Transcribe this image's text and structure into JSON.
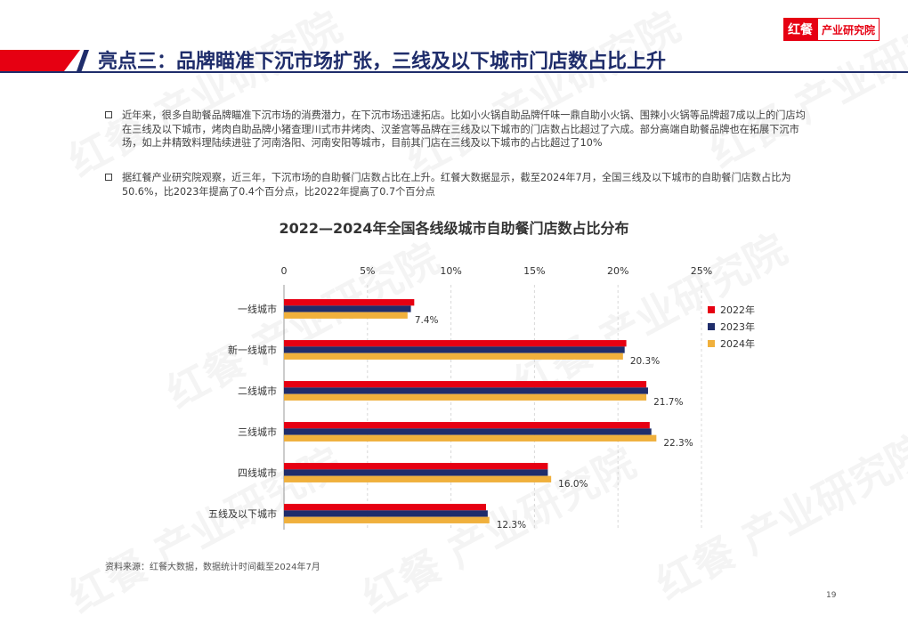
{
  "logo": {
    "mark": "红餐",
    "text": "产业研究院"
  },
  "title": "亮点三：品牌瞄准下沉市场扩张，三线及以下城市门店数占比上升",
  "bullets": [
    "近年来，很多自助餐品牌瞄准下沉市场的消费潜力，在下沉市场迅速拓店。比如小火锅自助品牌仟味一鼎自助小火锅、围辣小火锅等品牌超7成以上的门店均在三线及以下城市，烤肉自助品牌小猪查理川式市井烤肉、汉釜宫等品牌在三线及以下城市的门店数占比超过了六成。部分高端自助餐品牌也在拓展下沉市场，如上井精致料理陆续进驻了河南洛阳、河南安阳等城市，目前其门店在三线及以下城市的占比超过了10%",
    "据红餐产业研究院观察，近三年，下沉市场的自助餐门店数占比在上升。红餐大数据显示，截至2024年7月，全国三线及以下城市的自助餐门店数占比为50.6%，比2023年提高了0.4个百分点，比2022年提高了0.7个百分点"
  ],
  "chart_title": "2022—2024年全国各线级城市自助餐门店数占比分布",
  "chart_data": {
    "type": "bar",
    "orientation": "horizontal",
    "title": "2022—2024年全国各线级城市自助餐门店数占比分布",
    "categories": [
      "一线城市",
      "新一线城市",
      "二线城市",
      "三线城市",
      "四线城市",
      "五线及以下城市"
    ],
    "series": [
      {
        "name": "2022年",
        "color": "#e60012",
        "values": [
          7.8,
          20.5,
          21.7,
          21.9,
          15.8,
          12.1
        ]
      },
      {
        "name": "2023年",
        "color": "#1f2d6b",
        "values": [
          7.6,
          20.4,
          21.8,
          22.0,
          15.8,
          12.2
        ]
      },
      {
        "name": "2024年",
        "color": "#f0b03c",
        "values": [
          7.4,
          20.3,
          21.7,
          22.3,
          16.0,
          12.3
        ]
      }
    ],
    "data_labels": [
      "7.4%",
      "20.3%",
      "21.7%",
      "22.3%",
      "16.0%",
      "12.3%"
    ],
    "xlim": [
      0,
      25
    ],
    "xticks": [
      "0",
      "5%",
      "10%",
      "15%",
      "20%",
      "25%"
    ],
    "xtick_values": [
      0,
      5,
      10,
      15,
      20,
      25
    ],
    "grid": true,
    "legend_position": "right"
  },
  "source": "资料来源：红餐大数据，数据统计时间截至2024年7月",
  "page_number": "19",
  "watermark": "红餐 产业研究院"
}
